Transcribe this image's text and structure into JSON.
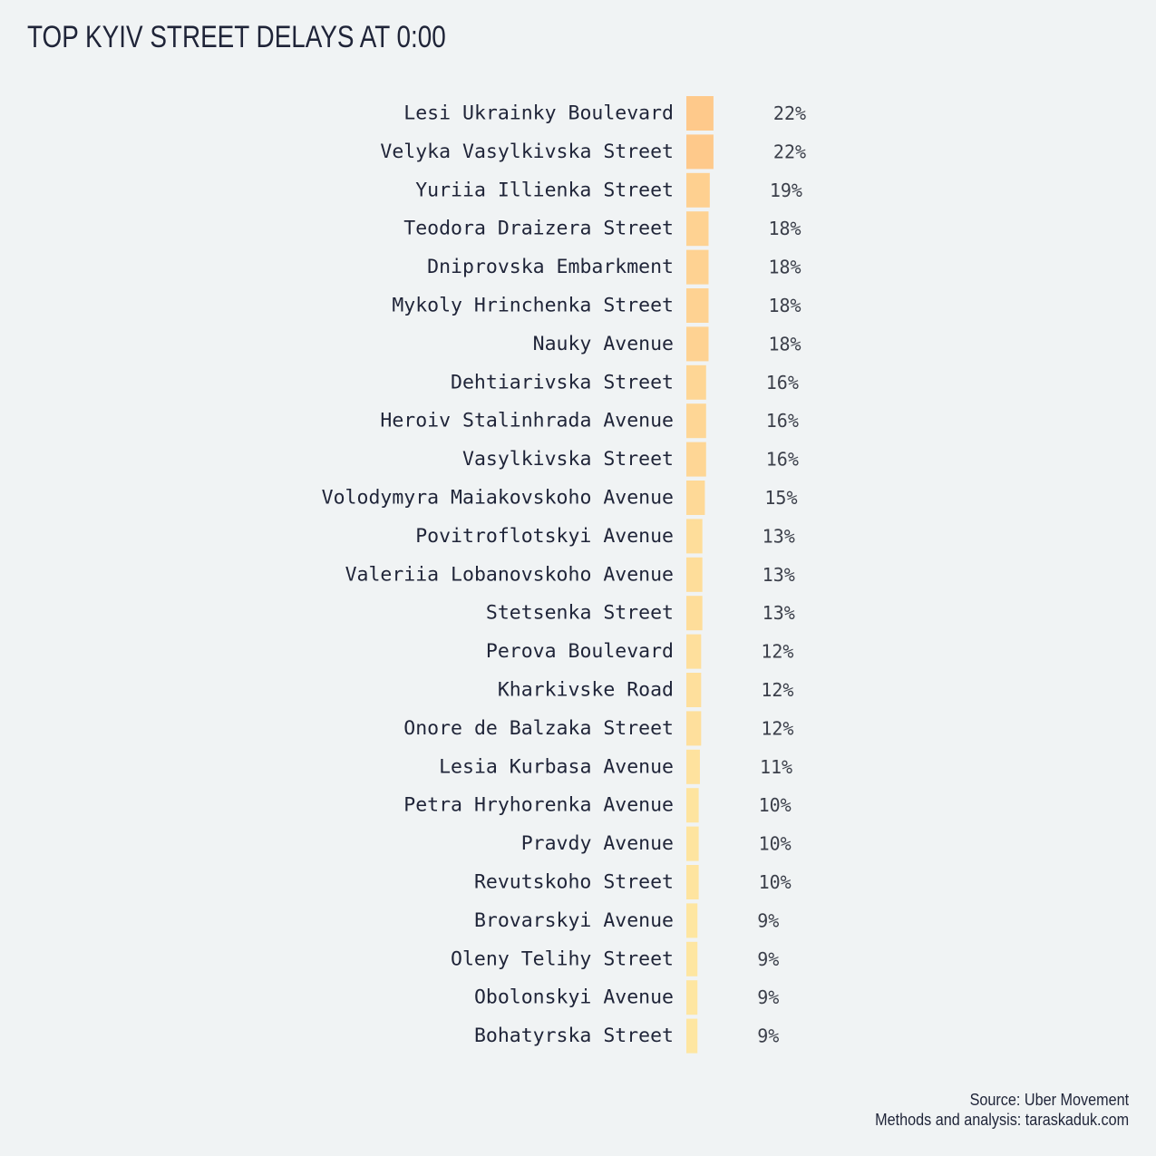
{
  "title": "TOP KYIV STREET DELAYS AT 0:00",
  "footer": {
    "source": "Source: Uber Movement",
    "credit": "Methods and analysis: taraskaduk.com"
  },
  "colors": {
    "background": "#f0f3f4",
    "text": "#1f2438",
    "bar_high": "#fec98b",
    "bar_low": "#fee6a1"
  },
  "chart_data": {
    "type": "bar",
    "orientation": "horizontal",
    "value_format": "percent",
    "categories": [
      "Lesi Ukrainky Boulevard",
      "Velyka Vasylkivska Street",
      "Yuriia Illienka Street",
      "Teodora Draizera Street",
      "Dniprovska Embarkment",
      "Mykoly Hrinchenka Street",
      "Nauky Avenue",
      "Dehtiarivska Street",
      "Heroiv Stalinhrada Avenue",
      "Vasylkivska Street",
      "Volodymyra Maiakovskoho Avenue",
      "Povitroflotskyi Avenue",
      "Valeriia Lobanovskoho Avenue",
      "Stetsenka Street",
      "Perova Boulevard",
      "Kharkivske Road",
      "Onore de Balzaka Street",
      "Lesia Kurbasa Avenue",
      "Petra Hryhorenka Avenue",
      "Pravdy Avenue",
      "Revutskoho Street",
      "Brovarskyi Avenue",
      "Oleny Telihy Street",
      "Obolonskyi Avenue",
      "Bohatyrska Street"
    ],
    "values": [
      22,
      22,
      19,
      18,
      18,
      18,
      18,
      16,
      16,
      16,
      15,
      13,
      13,
      13,
      12,
      12,
      12,
      11,
      10,
      10,
      10,
      9,
      9,
      9,
      9
    ],
    "labels": [
      "22%",
      "22%",
      "19%",
      "18%",
      "18%",
      "18%",
      "18%",
      "16%",
      "16%",
      "16%",
      "15%",
      "13%",
      "13%",
      "13%",
      "12%",
      "12%",
      "12%",
      "11%",
      "10%",
      "10%",
      "10%",
      "9%",
      "9%",
      "9%",
      "9%"
    ],
    "xlim": [
      0,
      100
    ],
    "grid": false,
    "legend": "none"
  }
}
